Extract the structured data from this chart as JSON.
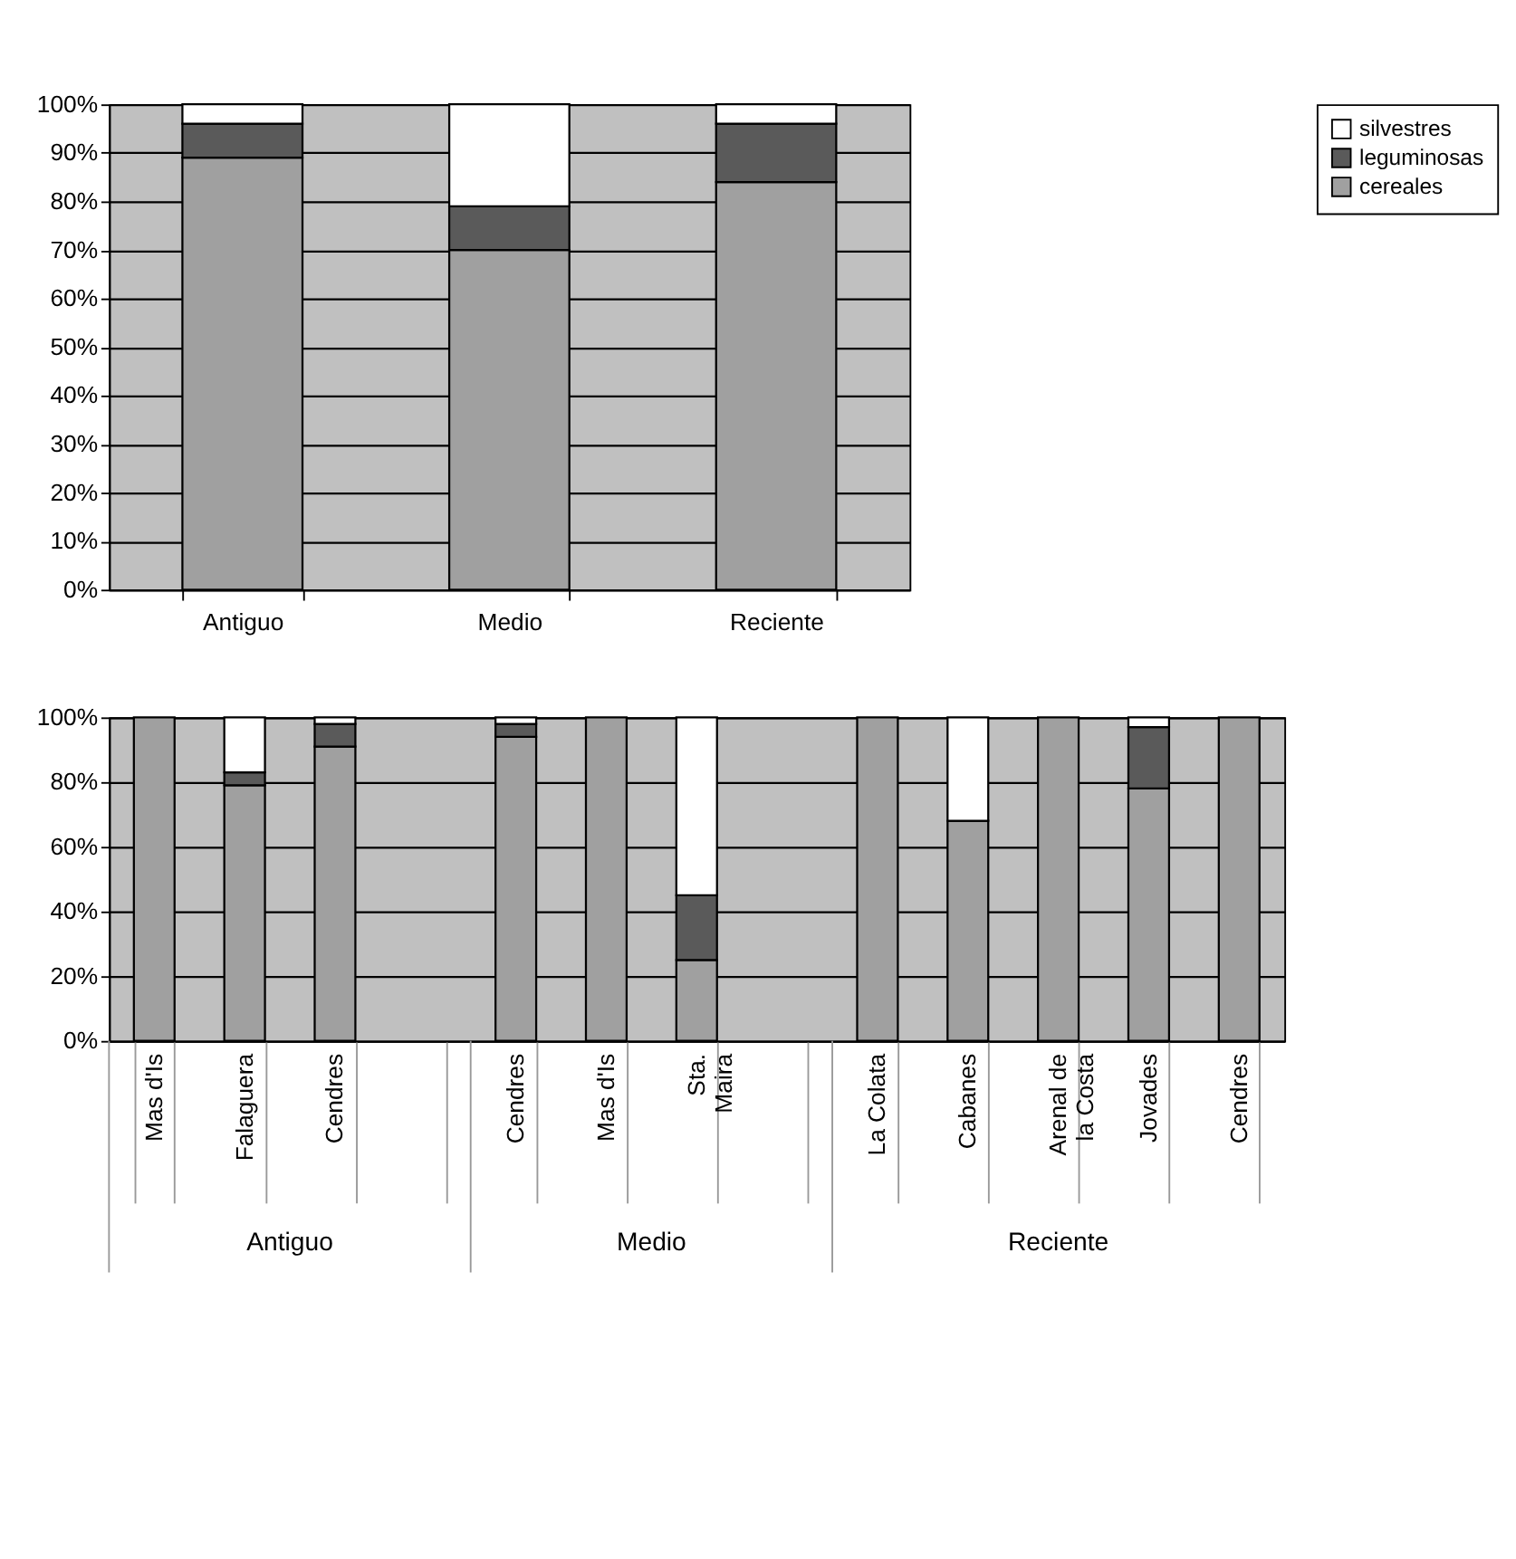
{
  "chart_data": [
    {
      "type": "bar",
      "stacked": true,
      "categories": [
        "Antiguo",
        "Medio",
        "Reciente"
      ],
      "series": [
        {
          "name": "cereales",
          "color": "#a0a0a0",
          "values": [
            89,
            70,
            84
          ]
        },
        {
          "name": "leguminosas",
          "color": "#5a5a5a",
          "values": [
            7,
            9,
            12
          ]
        },
        {
          "name": "silvestres",
          "color": "#ffffff",
          "values": [
            4,
            21,
            4
          ]
        }
      ],
      "ylim": [
        0,
        100
      ],
      "yticks": [
        {
          "value": 0,
          "label": "0%"
        },
        {
          "value": 10,
          "label": "10%"
        },
        {
          "value": 20,
          "label": "20%"
        },
        {
          "value": 30,
          "label": "30%"
        },
        {
          "value": 40,
          "label": "40%"
        },
        {
          "value": 50,
          "label": "50%"
        },
        {
          "value": 60,
          "label": "60%"
        },
        {
          "value": 70,
          "label": "70%"
        },
        {
          "value": 80,
          "label": "80%"
        },
        {
          "value": 90,
          "label": "90%"
        },
        {
          "value": 100,
          "label": "100%"
        }
      ],
      "grid": "y",
      "legend": "right"
    },
    {
      "type": "bar",
      "stacked": true,
      "categories": [
        "Mas d'Is",
        "Falaguera",
        "Cendres",
        null,
        "Cendres",
        "Mas d'Is",
        "Sta. Maira",
        null,
        "La Colata",
        "Cabanes",
        "Arenal de la Costa",
        "Jovades",
        "Cendres"
      ],
      "series": [
        {
          "color": "#a0a0a0",
          "values": [
            100,
            79,
            91,
            null,
            94,
            100,
            25,
            null,
            100,
            68,
            100,
            78,
            100
          ]
        },
        {
          "color": "#5a5a5a",
          "values": [
            0,
            4,
            7,
            null,
            4,
            0,
            20,
            null,
            0,
            0,
            0,
            19,
            0
          ]
        },
        {
          "color": "#ffffff",
          "values": [
            0,
            17,
            2,
            null,
            2,
            0,
            55,
            null,
            0,
            32,
            0,
            3,
            0
          ]
        }
      ],
      "ylim": [
        0,
        100
      ],
      "yticks": [
        {
          "value": 0,
          "label": "0%"
        },
        {
          "value": 20,
          "label": "20%"
        },
        {
          "value": 40,
          "label": "40%"
        },
        {
          "value": 60,
          "label": "60%"
        },
        {
          "value": 80,
          "label": "80%"
        },
        {
          "value": 100,
          "label": "100%"
        }
      ],
      "grid": "y",
      "annotations": [
        "Antiguo",
        "Medio",
        "Reciente"
      ]
    }
  ]
}
